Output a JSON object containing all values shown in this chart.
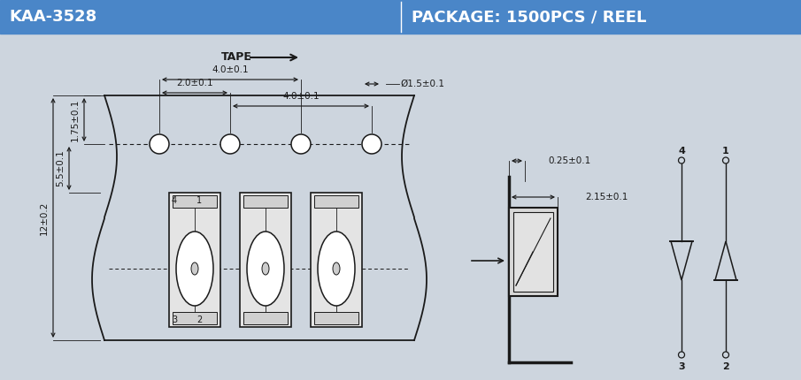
{
  "header_bg": "#4a86c8",
  "header_text_color": "#ffffff",
  "bg_color": "#cdd5de",
  "line_color": "#1a1a1a",
  "title_left": "KAA-3528",
  "title_right": "PACKAGE: 1500PCS / REEL",
  "tape_label": "TAPE",
  "dims": {
    "4.0_top": "4.0±0.1",
    "2.0": "2.0±0.1",
    "4.0_mid": "4.0±0.1",
    "phi1.5": "Ø1.5±0.1",
    "1.75": "1.75±0.1",
    "5.5": "5.5±0.1",
    "12": "12±0.2",
    "0.25": "0.25±0.1",
    "2.15": "2.15±0.1"
  }
}
